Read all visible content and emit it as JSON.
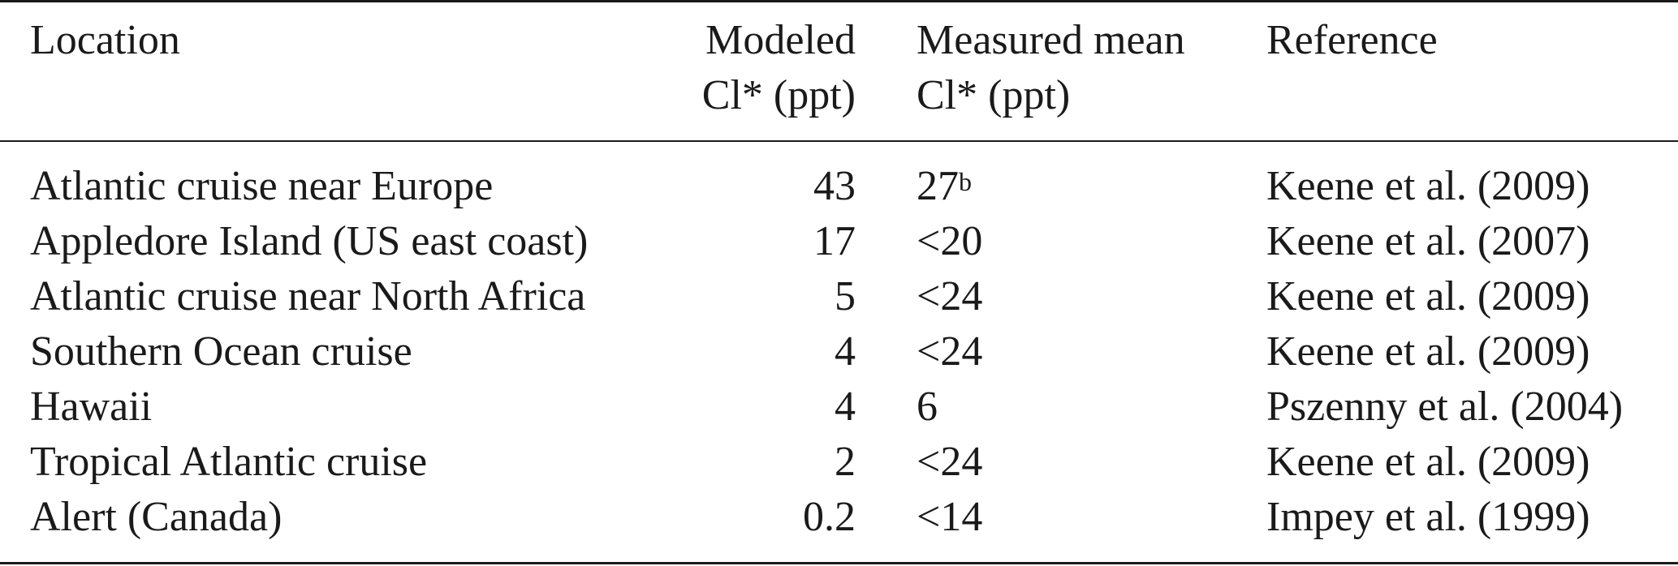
{
  "table": {
    "headers": {
      "location": "Location",
      "modeled_line1": "Modeled",
      "modeled_line2": "Cl* (ppt)",
      "measured_line1": "Measured mean",
      "measured_line2": "Cl* (ppt)",
      "reference": "Reference"
    },
    "rows": [
      {
        "location": "Atlantic cruise near Europe",
        "modeled": "43",
        "measured": "27",
        "measured_note": "b",
        "reference": "Keene et al. (2009)"
      },
      {
        "location": "Appledore Island (US east coast)",
        "modeled": "17",
        "measured": "<20",
        "measured_note": "",
        "reference": "Keene et al. (2007)"
      },
      {
        "location": "Atlantic cruise near North Africa",
        "modeled": "5",
        "measured": "<24",
        "measured_note": "",
        "reference": "Keene et al. (2009)"
      },
      {
        "location": "Southern Ocean cruise",
        "modeled": "4",
        "measured": "<24",
        "measured_note": "",
        "reference": "Keene et al. (2009)"
      },
      {
        "location": "Hawaii",
        "modeled": "4",
        "measured": "6",
        "measured_note": "",
        "reference": "Pszenny et al. (2004)"
      },
      {
        "location": "Tropical Atlantic cruise",
        "modeled": "2",
        "measured": "<24",
        "measured_note": "",
        "reference": "Keene et al. (2009)"
      },
      {
        "location": "Alert (Canada)",
        "modeled": "0.2",
        "measured": "<14",
        "measured_note": "",
        "reference": "Impey et al. (1999)"
      }
    ]
  }
}
